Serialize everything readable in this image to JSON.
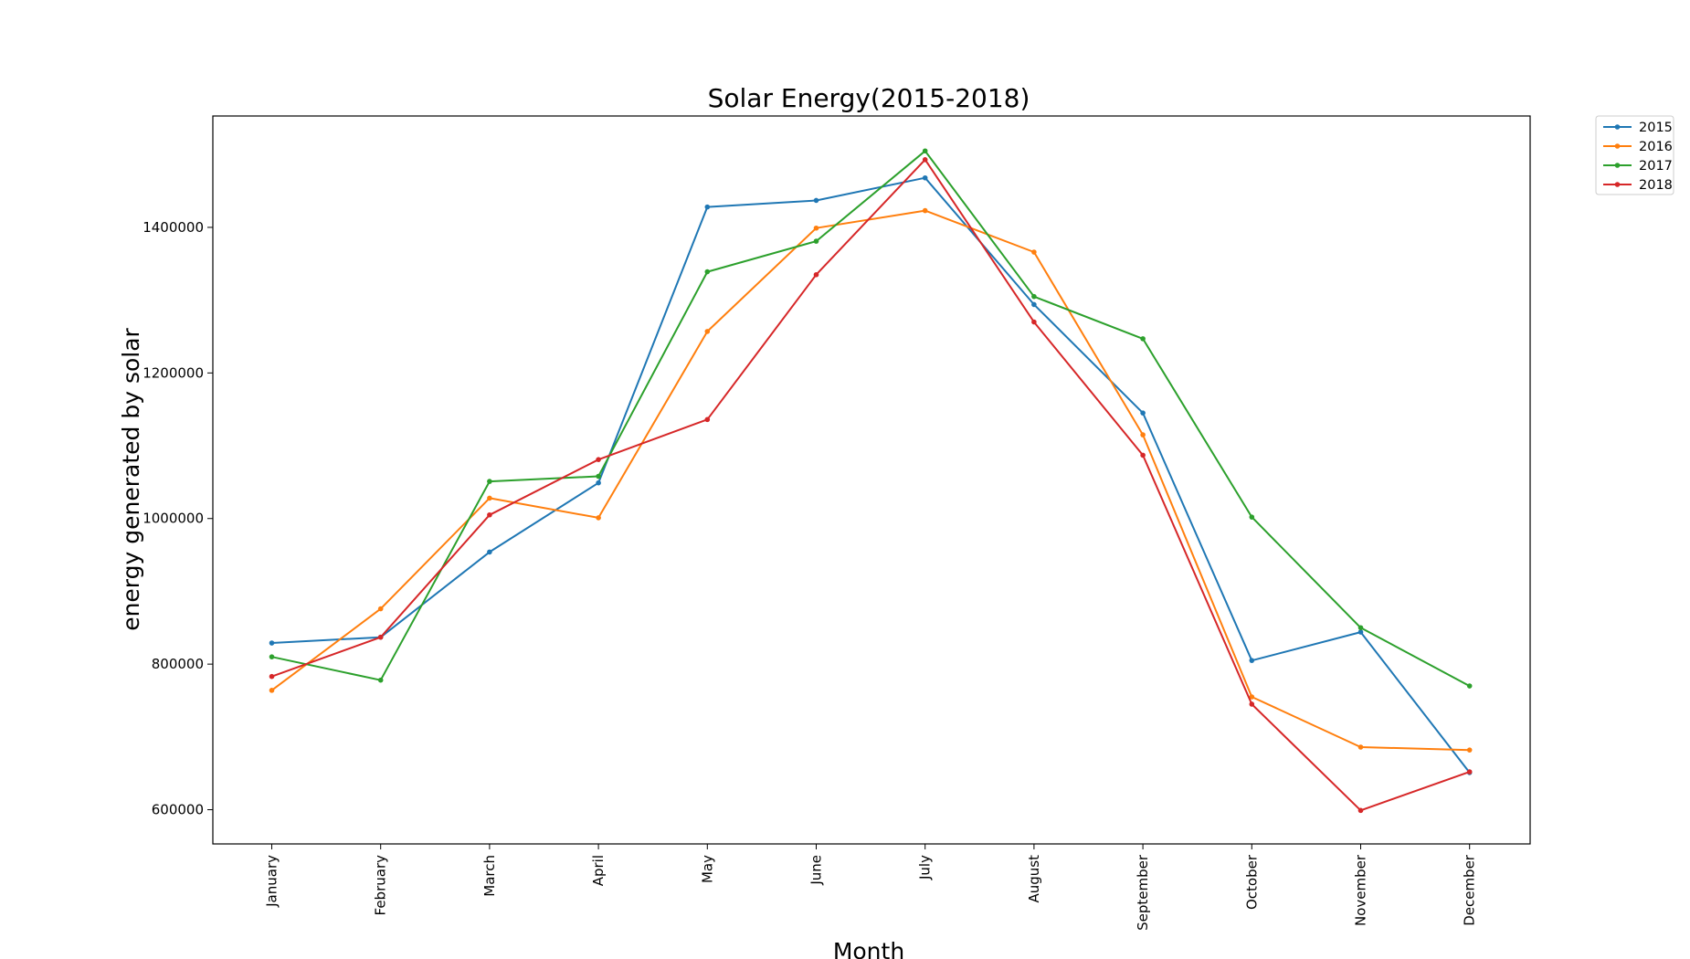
{
  "chart_data": {
    "type": "line",
    "title": "Solar Energy(2015-2018)",
    "xlabel": "Month",
    "ylabel": "energy generated by solar",
    "categories": [
      "January",
      "February",
      "March",
      "April",
      "May",
      "June",
      "July",
      "August",
      "September",
      "October",
      "November",
      "December"
    ],
    "ylim": [
      553000,
      1553000
    ],
    "yticks": [
      600000,
      800000,
      1000000,
      1200000,
      1400000
    ],
    "ytick_labels": [
      "600000",
      "800000",
      "1000000",
      "1200000",
      "1400000"
    ],
    "grid": false,
    "legend_position": "outside-top-right",
    "series": [
      {
        "name": "2015",
        "color": "#1f77b4",
        "values": [
          829000,
          837000,
          954000,
          1049000,
          1428000,
          1437000,
          1468000,
          1294000,
          1145000,
          805000,
          844000,
          651000
        ]
      },
      {
        "name": "2016",
        "color": "#ff7f0e",
        "values": [
          764000,
          876000,
          1028000,
          1001000,
          1257000,
          1399000,
          1423000,
          1366000,
          1115000,
          755000,
          686000,
          682000
        ]
      },
      {
        "name": "2017",
        "color": "#2ca02c",
        "values": [
          810000,
          778000,
          1051000,
          1058000,
          1339000,
          1381000,
          1505000,
          1305000,
          1247000,
          1002000,
          850000,
          770000
        ]
      },
      {
        "name": "2018",
        "color": "#d62728",
        "values": [
          783000,
          837000,
          1005000,
          1081000,
          1136000,
          1335000,
          1493000,
          1270000,
          1087000,
          745000,
          599000,
          652000
        ]
      }
    ]
  }
}
